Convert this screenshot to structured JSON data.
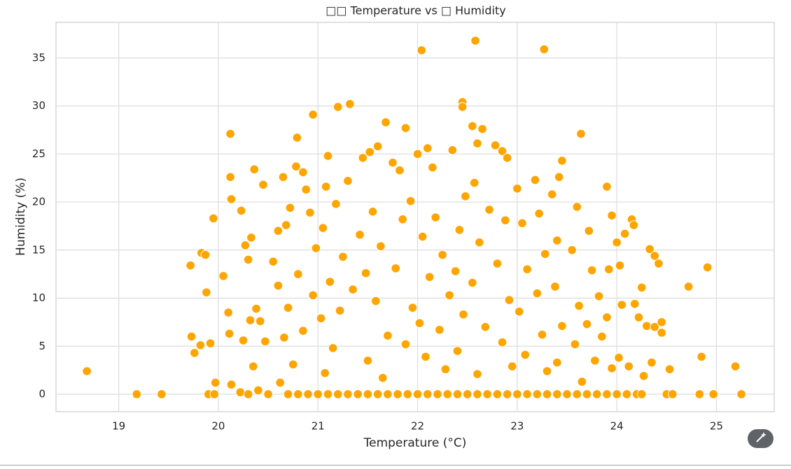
{
  "chart_data": {
    "type": "scatter",
    "title": "□□ Temperature vs □ Humidity",
    "x_label": "Temperature (°C)",
    "y_label": "Humidity (%)",
    "color": "#ffa500",
    "grid": true,
    "xlim": [
      18.37,
      25.58
    ],
    "ylim": [
      -1.82,
      38.7
    ],
    "xticks": [
      19,
      20,
      21,
      22,
      23,
      24,
      25
    ],
    "yticks": [
      0,
      5,
      10,
      15,
      20,
      25,
      30,
      35
    ],
    "x": [
      18.68,
      19.18,
      19.43,
      19.72,
      19.83,
      19.87,
      19.95,
      19.88,
      20.05,
      19.73,
      19.76,
      19.82,
      19.92,
      19.97,
      19.9,
      19.96,
      20.12,
      20.12,
      20.13,
      20.1,
      20.11,
      20.13,
      20.22,
      20.23,
      20.27,
      20.33,
      20.36,
      20.45,
      20.3,
      20.38,
      20.25,
      20.32,
      20.42,
      20.47,
      20.35,
      20.3,
      20.4,
      20.5,
      20.55,
      20.6,
      20.65,
      20.68,
      20.72,
      20.78,
      20.79,
      20.85,
      20.88,
      20.95,
      20.92,
      20.6,
      20.7,
      20.8,
      20.66,
      20.75,
      20.62,
      20.7,
      20.8,
      20.9,
      20.85,
      20.95,
      20.98,
      21.05,
      21.08,
      21.1,
      21.2,
      21.32,
      21.3,
      21.18,
      21.25,
      21.12,
      21.03,
      21.15,
      21.07,
      21.0,
      21.1,
      21.2,
      21.3,
      21.4,
      21.22,
      21.35,
      21.42,
      21.45,
      21.52,
      21.6,
      21.68,
      21.75,
      21.82,
      21.88,
      21.55,
      21.63,
      21.48,
      21.58,
      21.7,
      21.5,
      21.65,
      21.5,
      21.6,
      21.7,
      21.8,
      21.9,
      21.78,
      21.85,
      21.93,
      21.95,
      21.88,
      22.0,
      22.04,
      22.1,
      22.15,
      22.05,
      22.12,
      22.02,
      22.08,
      22.0,
      22.1,
      22.2,
      22.3,
      22.4,
      22.18,
      22.25,
      22.32,
      22.22,
      22.28,
      22.35,
      22.45,
      22.45,
      22.48,
      22.42,
      22.38,
      22.46,
      22.4,
      22.5,
      22.58,
      22.55,
      22.6,
      22.65,
      22.57,
      22.62,
      22.55,
      22.68,
      22.6,
      22.6,
      22.7,
      22.8,
      22.9,
      22.72,
      22.78,
      22.85,
      22.9,
      22.88,
      22.8,
      22.92,
      22.85,
      22.95,
      23.0,
      23.05,
      23.1,
      23.02,
      23.08,
      23.0,
      23.1,
      23.2,
      23.3,
      23.4,
      23.18,
      23.27,
      23.22,
      23.28,
      23.2,
      23.25,
      23.3,
      23.35,
      23.42,
      23.45,
      23.4,
      23.38,
      23.45,
      23.4,
      23.5,
      23.6,
      23.7,
      23.8,
      23.64,
      23.6,
      23.55,
      23.62,
      23.58,
      23.65,
      23.72,
      23.75,
      23.7,
      23.78,
      23.82,
      23.85,
      23.9,
      23.95,
      24.0,
      23.92,
      23.9,
      23.95,
      23.9,
      24.0,
      24.08,
      24.15,
      24.17,
      24.05,
      24.18,
      24.02,
      24.12,
      24.1,
      24.2,
      24.25,
      24.22,
      24.3,
      24.38,
      24.45,
      24.45,
      24.35,
      24.27,
      24.25,
      24.33,
      24.42,
      24.38,
      24.53,
      24.5,
      24.56,
      24.72,
      24.83,
      24.85,
      24.91,
      24.97,
      25.19,
      25.25,
      24.03
    ],
    "values": [
      2.4,
      0,
      0,
      13.4,
      14.7,
      14.5,
      18.3,
      10.6,
      12.3,
      6.0,
      4.3,
      5.1,
      5.3,
      1.2,
      0,
      0,
      27.1,
      22.6,
      20.3,
      8.5,
      6.3,
      1.0,
      0.2,
      19.1,
      15.5,
      16.3,
      23.4,
      21.8,
      14.0,
      8.9,
      5.6,
      7.7,
      7.6,
      5.5,
      2.9,
      0,
      0.4,
      0,
      13.8,
      17.0,
      22.6,
      17.6,
      19.4,
      23.7,
      26.7,
      23.1,
      21.3,
      29.1,
      18.9,
      11.3,
      9.0,
      12.5,
      5.9,
      3.1,
      1.2,
      0,
      0,
      0,
      6.6,
      10.3,
      15.2,
      17.3,
      21.6,
      24.8,
      29.9,
      30.2,
      22.2,
      19.8,
      14.3,
      11.7,
      7.9,
      4.8,
      2.2,
      0,
      0,
      0,
      0,
      0,
      8.7,
      10.9,
      16.6,
      24.6,
      25.2,
      25.8,
      28.3,
      24.1,
      23.3,
      27.7,
      19.0,
      15.4,
      12.6,
      9.7,
      6.1,
      3.5,
      1.7,
      0,
      0,
      0,
      0,
      0,
      13.1,
      18.2,
      20.1,
      9.0,
      5.2,
      25.0,
      35.8,
      25.6,
      23.6,
      16.4,
      12.2,
      7.4,
      3.9,
      0,
      0,
      0,
      0,
      0,
      18.4,
      14.5,
      10.3,
      6.7,
      2.6,
      25.4,
      30.4,
      29.9,
      20.6,
      17.1,
      12.8,
      8.3,
      4.5,
      0,
      36.8,
      27.9,
      26.1,
      27.6,
      22.0,
      15.8,
      11.6,
      7.0,
      2.1,
      0,
      0,
      0,
      0,
      19.2,
      25.9,
      25.3,
      24.6,
      18.1,
      13.6,
      9.8,
      5.4,
      2.9,
      21.4,
      17.8,
      13.0,
      8.6,
      4.1,
      0,
      0,
      0,
      0,
      0,
      22.3,
      35.9,
      18.8,
      14.6,
      10.5,
      6.2,
      2.4,
      20.8,
      22.6,
      24.3,
      16.0,
      11.2,
      7.1,
      3.3,
      0,
      0,
      0,
      0,
      27.1,
      19.5,
      15.0,
      9.2,
      5.2,
      1.3,
      17.0,
      12.9,
      7.3,
      3.5,
      10.2,
      6.0,
      21.6,
      18.6,
      15.8,
      13.0,
      8.0,
      2.7,
      0,
      0,
      16.7,
      18.2,
      17.6,
      9.3,
      9.4,
      3.8,
      2.9,
      0,
      0,
      11.1,
      8.0,
      7.1,
      7.0,
      7.5,
      6.4,
      3.3,
      1.9,
      0,
      15.1,
      13.6,
      14.4,
      2.6,
      0,
      0,
      11.2,
      0,
      3.9,
      13.2,
      0,
      2.9,
      0,
      13.4
    ]
  }
}
